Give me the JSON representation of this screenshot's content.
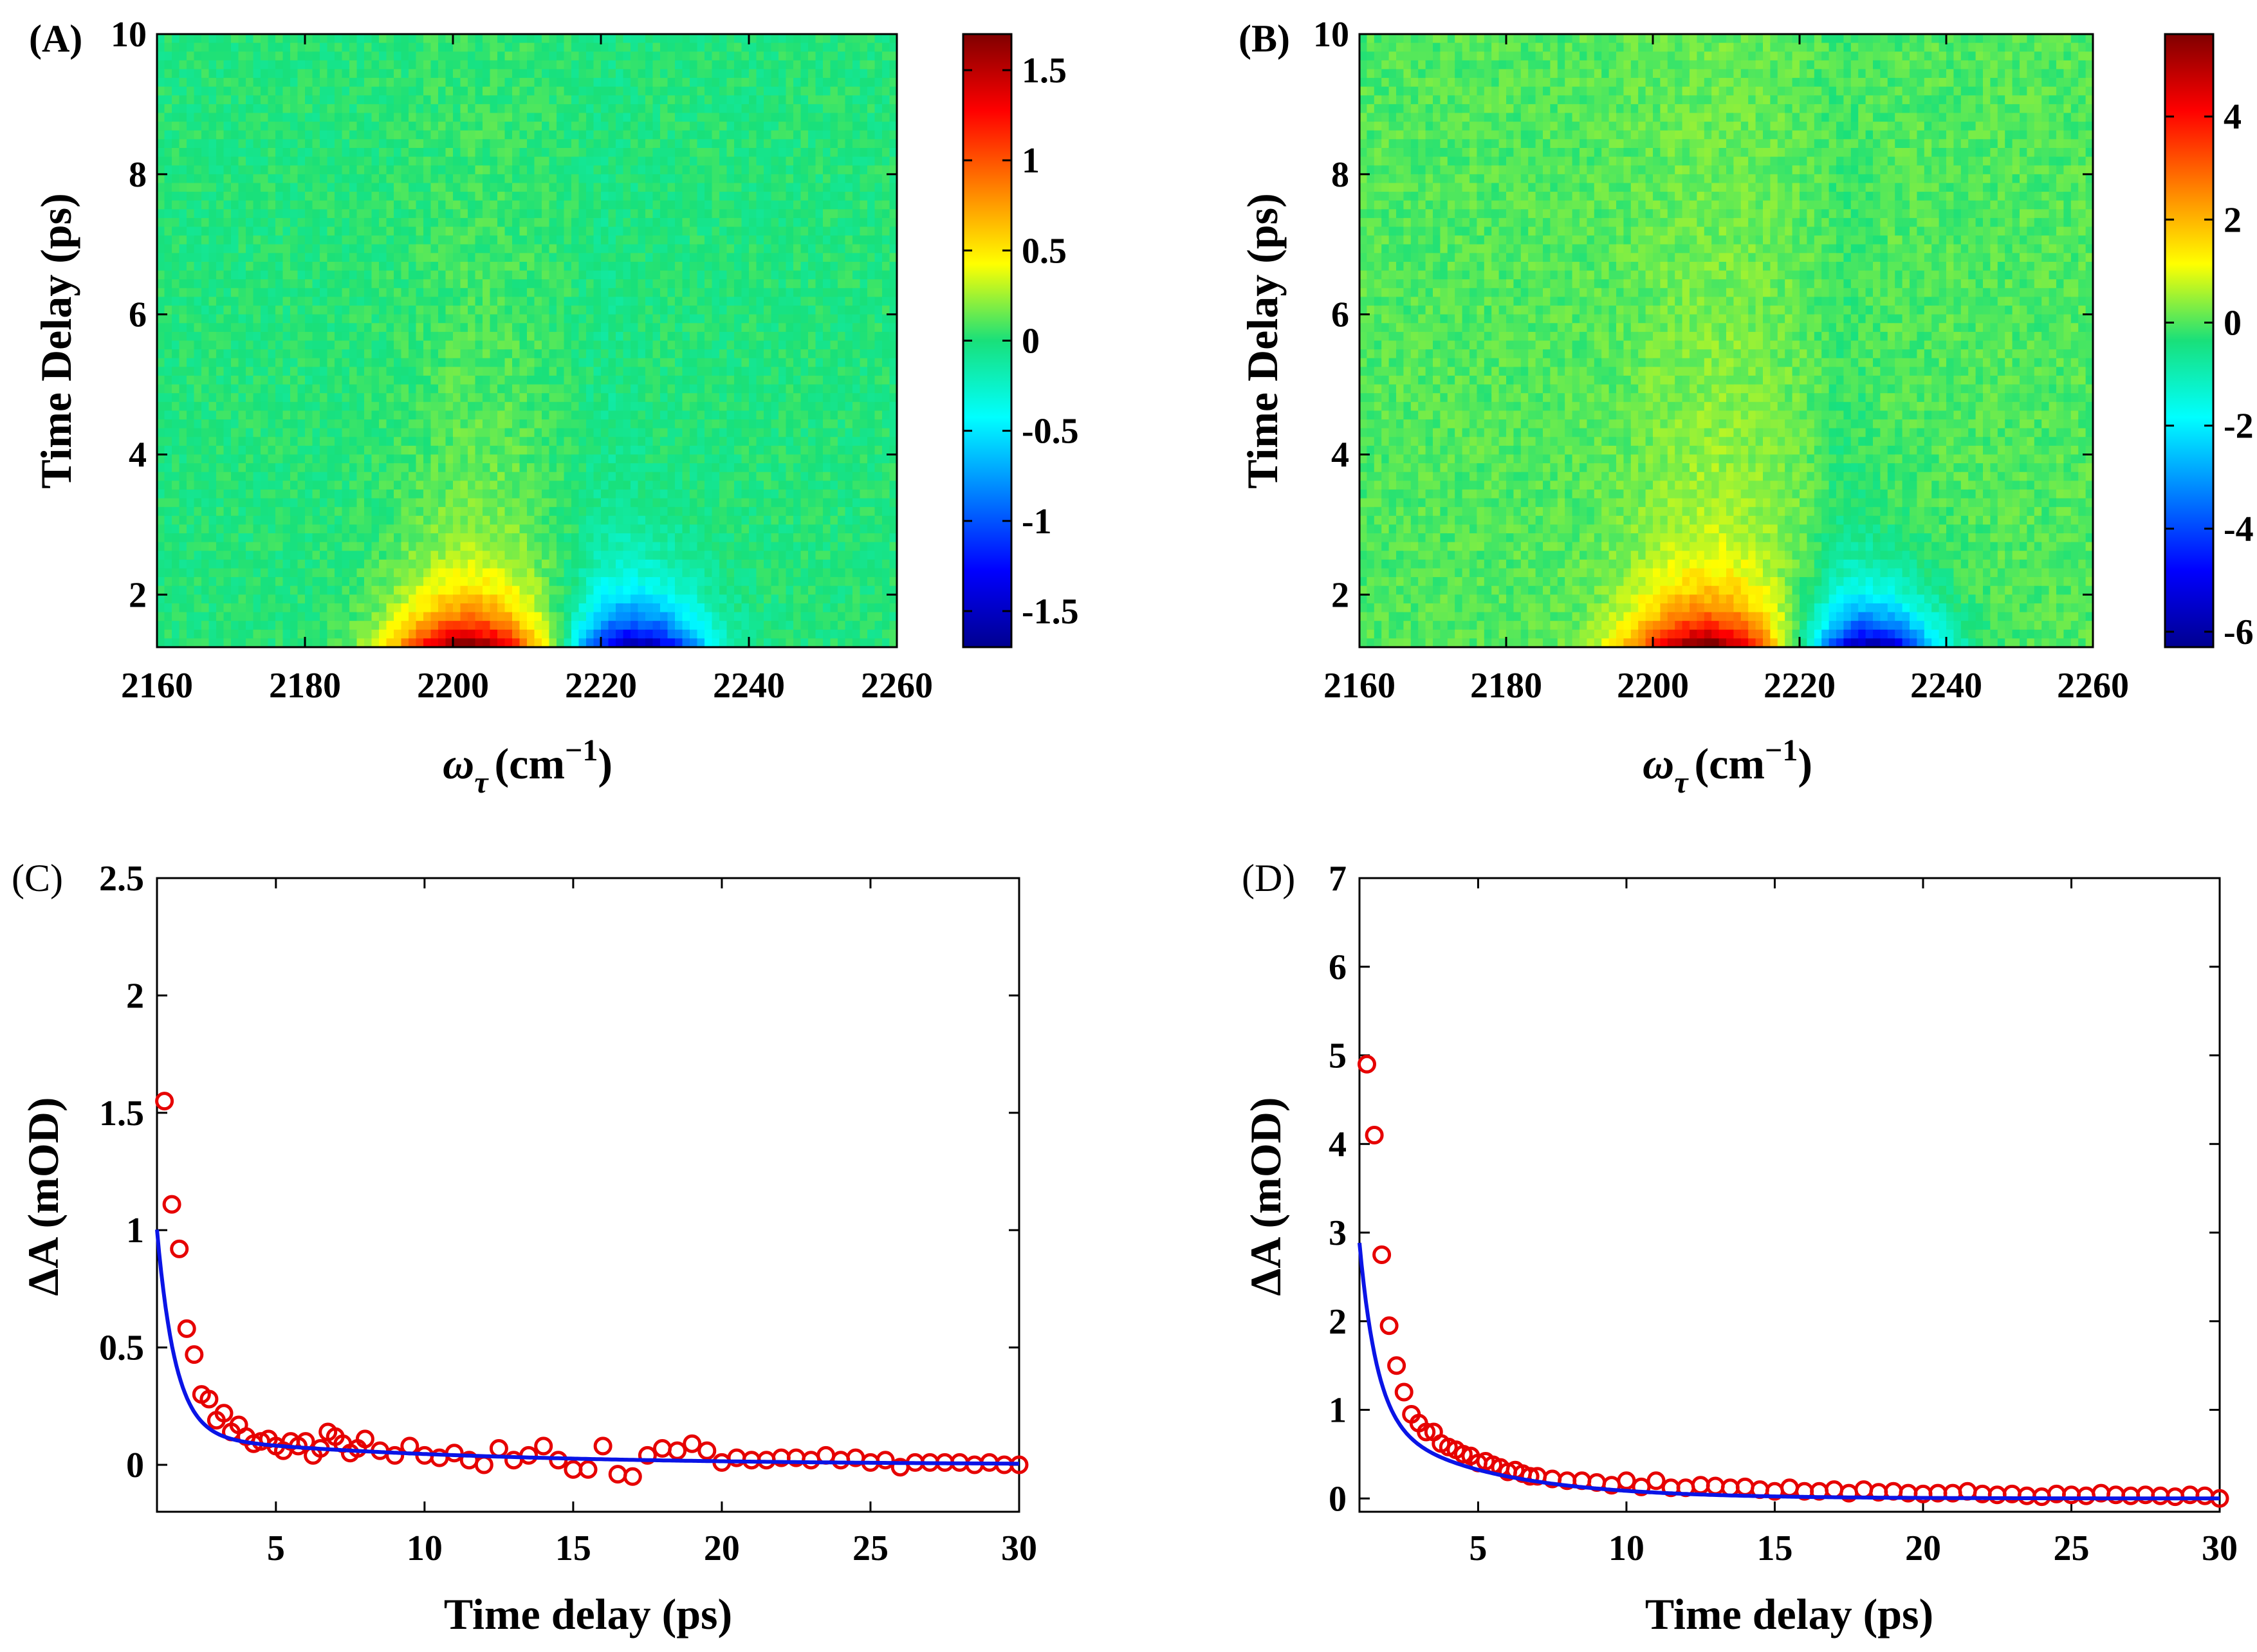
{
  "colors": {
    "axis": "#000000",
    "fit_line": "#0a14e6",
    "marker": "#e60000",
    "background": "#ffffff"
  },
  "chart_data": [
    {
      "panel": "(A)",
      "type": "heatmap",
      "xlabel": "ω",
      "xlabel_sub": "τ",
      "xlabel_unit": "(cm",
      "xlabel_sup": "−1",
      "xlabel_close": ")",
      "ylabel": "Time Delay (ps)",
      "xlim": [
        2160,
        2260
      ],
      "ylim": [
        1.25,
        10
      ],
      "xticks": [
        "2160",
        "2180",
        "2200",
        "2220",
        "2240",
        "2260"
      ],
      "yticks": [
        "2",
        "4",
        "6",
        "8",
        "10"
      ],
      "clim": [
        -1.7,
        1.7
      ],
      "colorbar_ticks": [
        "1.5",
        "1",
        "0.5",
        "0",
        "-0.5",
        "-1",
        "-1.5"
      ],
      "features": {
        "positive_peak_center": 2202,
        "negative_peak_center": 2225,
        "positive_amplitude": 1.6,
        "negative_amplitude": -1.65
      }
    },
    {
      "panel": "(B)",
      "type": "heatmap",
      "xlabel": "ω",
      "xlabel_sub": "τ",
      "xlabel_unit": "(cm",
      "xlabel_sup": "−1",
      "xlabel_close": ")",
      "ylabel": "Time Delay (ps)",
      "xlim": [
        2160,
        2260
      ],
      "ylim": [
        1.25,
        10
      ],
      "xticks": [
        "2160",
        "2180",
        "2200",
        "2220",
        "2240",
        "2260"
      ],
      "yticks": [
        "2",
        "4",
        "6",
        "8",
        "10"
      ],
      "clim": [
        -6.3,
        5.6
      ],
      "colorbar_ticks": [
        "4",
        "2",
        "0",
        "-2",
        "-4",
        "-6"
      ],
      "features": {
        "positive_peak_center": 2207,
        "negative_peak_center": 2230,
        "positive_amplitude": 5.4,
        "negative_amplitude": -6.1
      }
    },
    {
      "panel": "(C)",
      "type": "scatter",
      "xlabel": "Time delay (ps)",
      "ylabel": "ΔA (mOD)",
      "xlim": [
        1,
        30
      ],
      "ylim": [
        -0.2,
        2.5
      ],
      "xticks": [
        "5",
        "10",
        "15",
        "20",
        "25",
        "30"
      ],
      "yticks": [
        "0",
        "0.5",
        "1",
        "1.5",
        "2",
        "2.5"
      ],
      "series": [
        {
          "name": "data",
          "x": [
            1.25,
            1.5,
            1.75,
            2,
            2.25,
            2.5,
            2.75,
            3,
            3.25,
            3.5,
            3.75,
            4,
            4.25,
            4.5,
            4.75,
            5,
            5.25,
            5.5,
            5.75,
            6,
            6.25,
            6.5,
            6.75,
            7,
            7.25,
            7.5,
            7.75,
            8,
            8.5,
            9,
            9.5,
            10,
            10.5,
            11,
            11.5,
            12,
            12.5,
            13,
            13.5,
            14,
            14.5,
            15,
            15.5,
            16,
            16.5,
            17,
            17.5,
            18,
            18.5,
            19,
            19.5,
            20,
            20.5,
            21,
            21.5,
            22,
            22.5,
            23,
            23.5,
            24,
            24.5,
            25,
            25.5,
            26,
            26.5,
            27,
            27.5,
            28,
            28.5,
            29,
            29.5,
            30
          ],
          "y": [
            1.55,
            1.11,
            0.92,
            0.58,
            0.47,
            0.3,
            0.28,
            0.19,
            0.22,
            0.14,
            0.17,
            0.12,
            0.09,
            0.1,
            0.11,
            0.08,
            0.06,
            0.1,
            0.08,
            0.1,
            0.04,
            0.07,
            0.14,
            0.12,
            0.09,
            0.05,
            0.07,
            0.11,
            0.06,
            0.04,
            0.08,
            0.04,
            0.03,
            0.05,
            0.02,
            0.0,
            0.07,
            0.02,
            0.04,
            0.08,
            0.02,
            -0.02,
            -0.02,
            0.08,
            -0.04,
            -0.05,
            0.04,
            0.07,
            0.06,
            0.09,
            0.06,
            0.01,
            0.03,
            0.02,
            0.02,
            0.03,
            0.03,
            0.02,
            0.04,
            0.02,
            0.03,
            0.01,
            0.02,
            -0.01,
            0.01,
            0.01,
            0.01,
            0.01,
            0.0,
            0.01,
            0.0,
            0.0
          ]
        },
        {
          "name": "fit",
          "model": "biexponential",
          "A1": 4.4,
          "tau1": 0.62,
          "A2": 0.14,
          "tau2": 9.0
        }
      ]
    },
    {
      "panel": "(D)",
      "type": "scatter",
      "xlabel": "Time delay (ps)",
      "ylabel": "ΔA (mOD)",
      "xlim": [
        1,
        30
      ],
      "ylim": [
        -0.15,
        7
      ],
      "xticks": [
        "5",
        "10",
        "15",
        "20",
        "25",
        "30"
      ],
      "yticks": [
        "0",
        "1",
        "2",
        "3",
        "4",
        "5",
        "6",
        "7"
      ],
      "series": [
        {
          "name": "data",
          "x": [
            1.25,
            1.5,
            1.75,
            2,
            2.25,
            2.5,
            2.75,
            3,
            3.25,
            3.5,
            3.75,
            4,
            4.25,
            4.5,
            4.75,
            5,
            5.25,
            5.5,
            5.75,
            6,
            6.25,
            6.5,
            6.75,
            7,
            7.5,
            8,
            8.5,
            9,
            9.5,
            10,
            10.5,
            11,
            11.5,
            12,
            12.5,
            13,
            13.5,
            14,
            14.5,
            15,
            15.5,
            16,
            16.5,
            17,
            17.5,
            18,
            18.5,
            19,
            19.5,
            20,
            20.5,
            21,
            21.5,
            22,
            22.5,
            23,
            23.5,
            24,
            24.5,
            25,
            25.5,
            26,
            26.5,
            27,
            27.5,
            28,
            28.5,
            29,
            29.5,
            30
          ],
          "y": [
            4.9,
            4.1,
            2.75,
            1.95,
            1.5,
            1.2,
            0.95,
            0.85,
            0.75,
            0.75,
            0.62,
            0.58,
            0.55,
            0.5,
            0.48,
            0.4,
            0.42,
            0.38,
            0.35,
            0.3,
            0.32,
            0.28,
            0.25,
            0.25,
            0.22,
            0.2,
            0.2,
            0.18,
            0.15,
            0.2,
            0.13,
            0.2,
            0.12,
            0.12,
            0.15,
            0.14,
            0.12,
            0.13,
            0.1,
            0.08,
            0.12,
            0.08,
            0.08,
            0.1,
            0.06,
            0.1,
            0.07,
            0.08,
            0.06,
            0.05,
            0.06,
            0.06,
            0.08,
            0.05,
            0.04,
            0.05,
            0.03,
            0.02,
            0.05,
            0.04,
            0.03,
            0.06,
            0.04,
            0.03,
            0.04,
            0.03,
            0.02,
            0.04,
            0.03,
            0.0
          ]
        },
        {
          "name": "fit",
          "model": "biexponential",
          "A1": 11.0,
          "tau1": 0.58,
          "A2": 1.2,
          "tau2": 3.8
        }
      ]
    }
  ]
}
